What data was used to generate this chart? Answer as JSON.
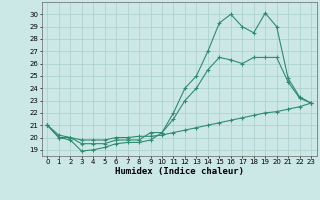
{
  "line1_x": [
    0,
    1,
    2,
    3,
    4,
    5,
    6,
    7,
    8,
    9,
    10,
    11,
    12,
    13,
    14,
    15,
    16,
    17,
    18,
    19,
    20,
    21,
    22,
    23
  ],
  "line1_y": [
    21.0,
    20.0,
    19.8,
    18.9,
    19.0,
    19.2,
    19.5,
    19.6,
    19.6,
    19.8,
    20.4,
    22.0,
    24.0,
    25.0,
    27.0,
    29.3,
    30.0,
    29.0,
    28.5,
    30.1,
    29.0,
    24.8,
    23.3,
    22.8
  ],
  "line2_x": [
    0,
    1,
    2,
    3,
    4,
    5,
    6,
    7,
    8,
    9,
    10,
    11,
    12,
    13,
    14,
    15,
    16,
    17,
    18,
    19,
    20,
    21,
    22,
    23
  ],
  "line2_y": [
    21.0,
    20.0,
    20.0,
    19.5,
    19.5,
    19.5,
    19.8,
    19.8,
    19.8,
    20.4,
    20.4,
    21.5,
    23.0,
    24.0,
    25.5,
    26.5,
    26.3,
    26.0,
    26.5,
    26.5,
    26.5,
    24.5,
    23.2,
    22.8
  ],
  "line3_x": [
    0,
    1,
    2,
    3,
    4,
    5,
    6,
    7,
    8,
    9,
    10,
    11,
    12,
    13,
    14,
    15,
    16,
    17,
    18,
    19,
    20,
    21,
    22,
    23
  ],
  "line3_y": [
    21.0,
    20.2,
    20.0,
    19.8,
    19.8,
    19.8,
    20.0,
    20.0,
    20.1,
    20.1,
    20.2,
    20.4,
    20.6,
    20.8,
    21.0,
    21.2,
    21.4,
    21.6,
    21.8,
    22.0,
    22.1,
    22.3,
    22.5,
    22.8
  ],
  "line_color": "#2e8b6e",
  "bg_color": "#cce8e6",
  "grid_color": "#aacfcc",
  "xlabel": "Humidex (Indice chaleur)",
  "ylim": [
    18.5,
    31.0
  ],
  "xlim": [
    -0.5,
    23.5
  ],
  "yticks": [
    19,
    20,
    21,
    22,
    23,
    24,
    25,
    26,
    27,
    28,
    29,
    30
  ],
  "xticks": [
    0,
    1,
    2,
    3,
    4,
    5,
    6,
    7,
    8,
    9,
    10,
    11,
    12,
    13,
    14,
    15,
    16,
    17,
    18,
    19,
    20,
    21,
    22,
    23
  ],
  "marker": "+",
  "markersize": 3,
  "linewidth": 0.8,
  "xlabel_fontsize": 6.5,
  "tick_fontsize": 5.0
}
